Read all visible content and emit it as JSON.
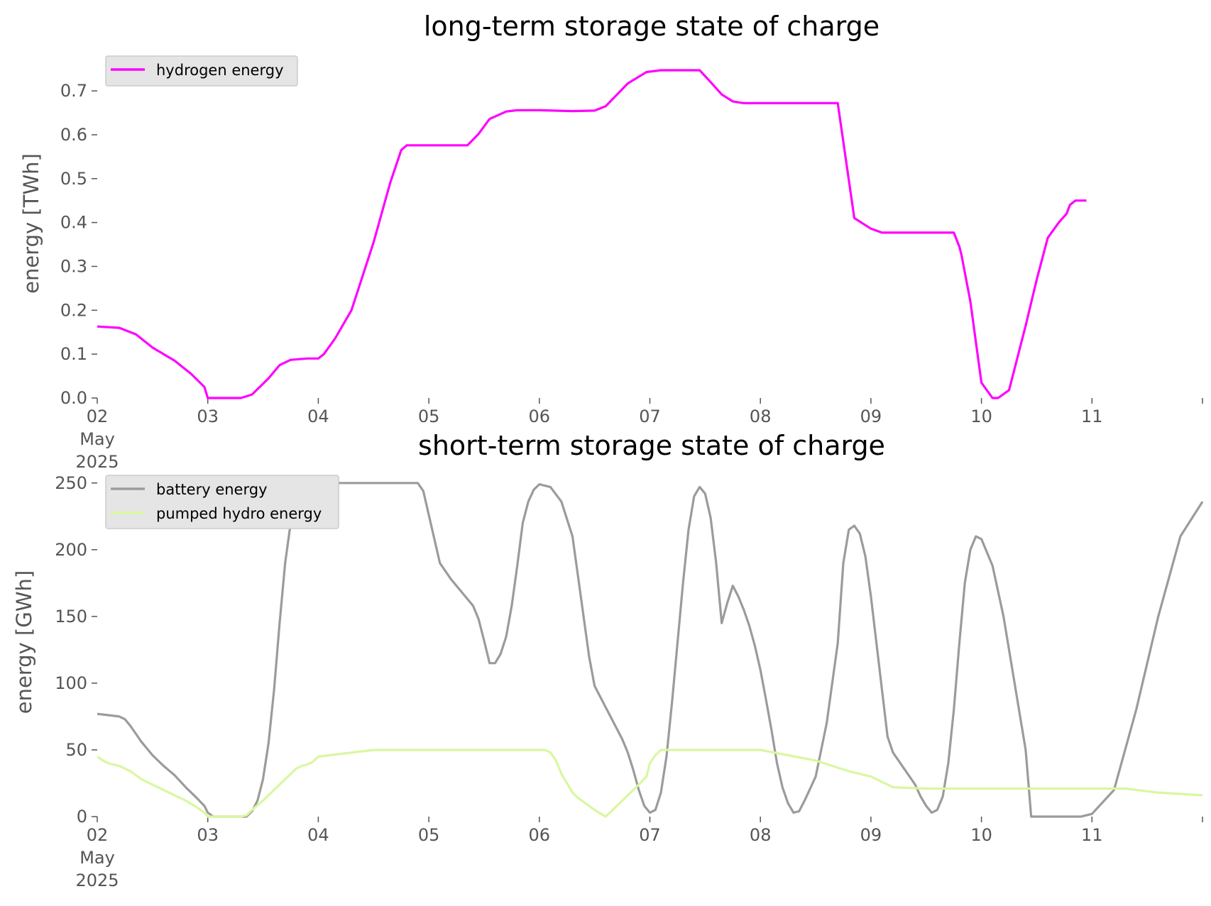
{
  "chart_data": [
    {
      "type": "line",
      "title": "long-term storage state of charge",
      "xlabel": "",
      "ylabel": "energy [TWh]",
      "xlim": [
        "2025-05-02T00:00",
        "2025-05-12T00:00"
      ],
      "ylim": [
        0,
        0.76
      ],
      "yticks": [
        "0.0",
        "0.1",
        "0.2",
        "0.3",
        "0.4",
        "0.5",
        "0.6",
        "0.7"
      ],
      "xticks": [
        "02",
        "03",
        "04",
        "05",
        "06",
        "07",
        "08",
        "09",
        "10",
        "11"
      ],
      "xtick_sub": [
        "May",
        "2025"
      ],
      "grid": false,
      "legend": "top-left",
      "series": [
        {
          "name": "hydrogen energy",
          "color": "#ff00ff",
          "x": [
            0,
            0.2,
            0.35,
            0.5,
            0.7,
            0.85,
            0.97,
            1.0,
            1.3,
            1.4,
            1.55,
            1.65,
            1.75,
            1.9,
            2.0,
            2.05,
            2.15,
            2.3,
            2.5,
            2.65,
            2.75,
            2.8,
            2.85,
            3.0,
            3.2,
            3.35,
            3.45,
            3.55,
            3.7,
            3.8,
            4.0,
            4.3,
            4.5,
            4.6,
            4.8,
            4.97,
            5.1,
            5.3,
            5.45,
            5.55,
            5.65,
            5.75,
            5.85,
            6.0,
            6.2,
            6.3,
            6.5,
            6.7,
            6.85,
            7.0,
            7.1,
            7.2,
            7.35,
            7.45,
            7.55,
            7.65,
            7.7,
            7.75,
            7.8,
            7.82,
            7.9,
            8.0,
            8.1,
            8.15,
            8.25,
            8.4,
            8.5,
            8.6,
            8.7,
            8.77,
            8.8,
            8.85,
            8.95
          ],
          "y": [
            0.163,
            0.16,
            0.145,
            0.115,
            0.085,
            0.055,
            0.025,
            0.0,
            0.0,
            0.008,
            0.045,
            0.075,
            0.087,
            0.09,
            0.09,
            0.1,
            0.135,
            0.2,
            0.355,
            0.49,
            0.565,
            0.576,
            0.576,
            0.576,
            0.576,
            0.576,
            0.602,
            0.636,
            0.653,
            0.656,
            0.656,
            0.654,
            0.655,
            0.665,
            0.717,
            0.743,
            0.747,
            0.747,
            0.747,
            0.72,
            0.692,
            0.676,
            0.672,
            0.672,
            0.672,
            0.672,
            0.672,
            0.672,
            0.41,
            0.386,
            0.377,
            0.377,
            0.377,
            0.377,
            0.377,
            0.377,
            0.377,
            0.377,
            0.345,
            0.325,
            0.22,
            0.035,
            0.0,
            0.0,
            0.018,
            0.165,
            0.27,
            0.365,
            0.4,
            0.42,
            0.44,
            0.45,
            0.45
          ],
          "x_note": "days after 2025-05-02"
        }
      ]
    },
    {
      "type": "line",
      "title": "short-term storage state of charge",
      "xlabel": "",
      "ylabel": "energy [GWh]",
      "xlim": [
        "2025-05-02T00:00",
        "2025-05-12T00:00"
      ],
      "ylim": [
        0,
        252
      ],
      "yticks": [
        "0",
        "50",
        "100",
        "150",
        "200",
        "250"
      ],
      "xticks": [
        "02",
        "03",
        "04",
        "05",
        "06",
        "07",
        "08",
        "09",
        "10",
        "11"
      ],
      "xtick_sub": [
        "May",
        "2025"
      ],
      "grid": false,
      "legend": "top-left",
      "series": [
        {
          "name": "battery energy",
          "color": "#9b9b9b",
          "x": [],
          "y": []
        },
        {
          "name": "pumped hydro energy",
          "color": "#d9f7a0",
          "x": [],
          "y": []
        }
      ]
    }
  ]
}
